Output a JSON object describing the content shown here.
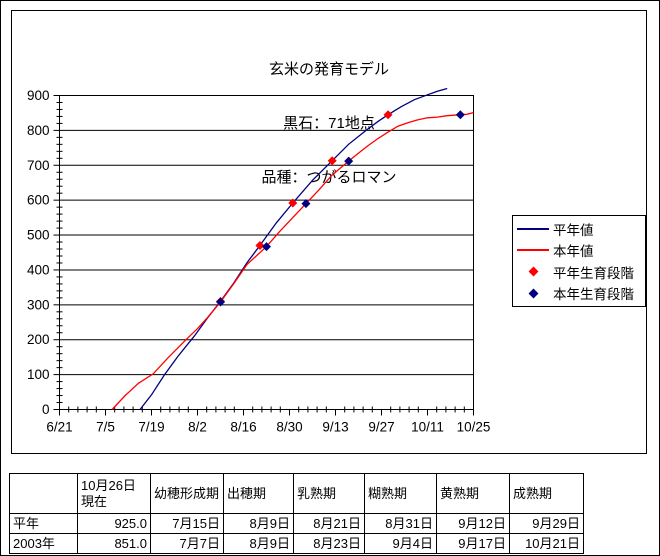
{
  "chart_data": {
    "type": "line",
    "title_lines": [
      "玄米の発育モデル",
      "黒石：71地点",
      "品種：つがるロマン"
    ],
    "x_axis_start_date": "6/21",
    "x_ticks": [
      {
        "label": "6/21",
        "day": 0
      },
      {
        "label": "7/5",
        "day": 14
      },
      {
        "label": "7/19",
        "day": 28
      },
      {
        "label": "8/2",
        "day": 42
      },
      {
        "label": "8/16",
        "day": 56
      },
      {
        "label": "8/30",
        "day": 70
      },
      {
        "label": "9/13",
        "day": 84
      },
      {
        "label": "9/27",
        "day": 98
      },
      {
        "label": "10/11",
        "day": 112
      },
      {
        "label": "10/25",
        "day": 126
      }
    ],
    "ylim": [
      0,
      900
    ],
    "y_tick_step": 100,
    "y_minor_step": 20,
    "x_minor_step_days": 2.8,
    "grid": "horizontal",
    "legend_position": "right",
    "series": [
      {
        "id": "normal-year-value",
        "name": "平年値",
        "color": "#000080",
        "kind": "line",
        "points": [
          [
            24.5,
            0
          ],
          [
            28,
            42
          ],
          [
            32,
            100
          ],
          [
            36,
            152
          ],
          [
            41,
            210
          ],
          [
            45,
            262
          ],
          [
            49,
            310
          ],
          [
            53,
            362
          ],
          [
            57,
            420
          ],
          [
            61,
            470
          ],
          [
            66,
            535
          ],
          [
            71,
            592
          ],
          [
            77,
            657
          ],
          [
            83,
            713
          ],
          [
            88,
            760
          ],
          [
            93,
            798
          ],
          [
            97,
            826
          ],
          [
            100,
            845
          ],
          [
            104,
            868
          ],
          [
            108,
            888
          ],
          [
            112,
            902
          ],
          [
            115,
            912
          ],
          [
            118,
            920
          ]
        ]
      },
      {
        "id": "current-year-value",
        "name": "本年値",
        "color": "#ff0000",
        "kind": "line",
        "points": [
          [
            16,
            0
          ],
          [
            20,
            40
          ],
          [
            24,
            75
          ],
          [
            28.5,
            102
          ],
          [
            33,
            148
          ],
          [
            38.5,
            200
          ],
          [
            42,
            232
          ],
          [
            45,
            263
          ],
          [
            49,
            308
          ],
          [
            53,
            360
          ],
          [
            57,
            415
          ],
          [
            63,
            467
          ],
          [
            67,
            510
          ],
          [
            71,
            550
          ],
          [
            75,
            590
          ],
          [
            79,
            630
          ],
          [
            83,
            672
          ],
          [
            88,
            712
          ],
          [
            91,
            735
          ],
          [
            94,
            757
          ],
          [
            97,
            777
          ],
          [
            100,
            795
          ],
          [
            103,
            812
          ],
          [
            106,
            822
          ],
          [
            109,
            830
          ],
          [
            112,
            836
          ],
          [
            115,
            838
          ],
          [
            118,
            842
          ],
          [
            122,
            845
          ],
          [
            124,
            846
          ],
          [
            126,
            851
          ]
        ]
      },
      {
        "id": "normal-year-stages",
        "name": "平年生育段階",
        "color": "#ff0000",
        "kind": "scatter",
        "marker": "diamond",
        "points": [
          {
            "date": "8/9",
            "day": 49,
            "value": 310
          },
          {
            "date": "8/21",
            "day": 61,
            "value": 470
          },
          {
            "date": "8/31",
            "day": 71,
            "value": 592
          },
          {
            "date": "9/12",
            "day": 83,
            "value": 713
          },
          {
            "date": "9/29",
            "day": 100,
            "value": 845
          }
        ]
      },
      {
        "id": "current-year-stages",
        "name": "本年生育段階",
        "color": "#000080",
        "kind": "scatter",
        "marker": "diamond",
        "points": [
          {
            "date": "8/9",
            "day": 49,
            "value": 308
          },
          {
            "date": "8/23",
            "day": 63,
            "value": 467
          },
          {
            "date": "9/4",
            "day": 75,
            "value": 590
          },
          {
            "date": "9/17",
            "day": 88,
            "value": 712
          },
          {
            "date": "10/21",
            "day": 122,
            "value": 845
          }
        ]
      }
    ]
  },
  "table": {
    "headers": [
      "",
      "10月26日現在",
      "幼穂形成期",
      "出穂期",
      "乳熟期",
      "糊熟期",
      "黄熟期",
      "成熟期"
    ],
    "rows": [
      {
        "label": "平年",
        "cells": [
          "925.0",
          "7月15日",
          "8月9日",
          "8月21日",
          "8月31日",
          "9月12日",
          "9月29日"
        ]
      },
      {
        "label": "2003年",
        "cells": [
          "851.0",
          "7月7日",
          "8月9日",
          "8月23日",
          "9月4日",
          "9月17日",
          "10月21日"
        ]
      }
    ]
  },
  "colors": {
    "normal_year": "#000080",
    "current_year": "#ff0000",
    "axis": "#000000",
    "background": "#ffffff"
  }
}
